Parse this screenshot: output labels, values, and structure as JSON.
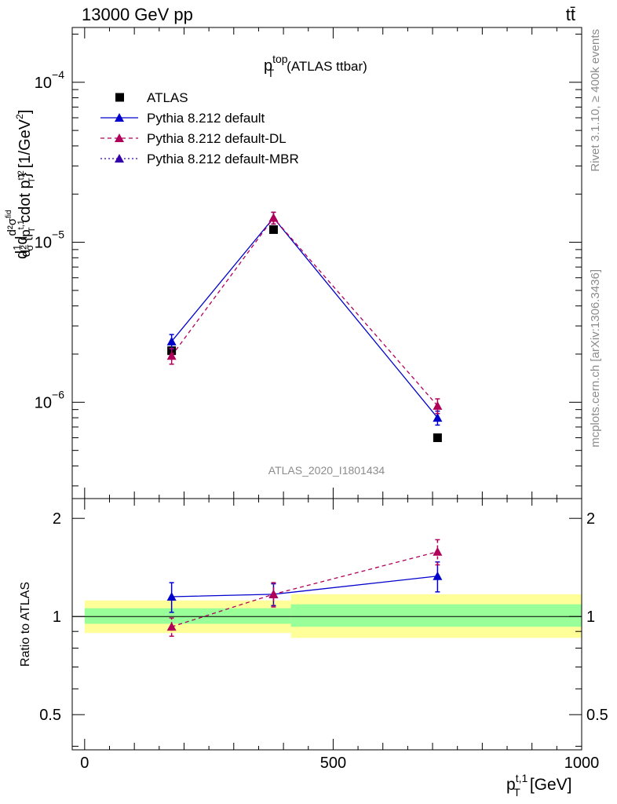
{
  "header": {
    "left": "13000 GeV pp",
    "right": "tt̄"
  },
  "side_labels": {
    "rivet": "Rivet 3.1.10, ≥ 400k events",
    "mcplots": "mcplots.cern.ch [arXiv:1306.3436]"
  },
  "watermark": "ATLAS_2020_I1801434",
  "chart_data": [
    {
      "type": "line",
      "panel": "main",
      "title_main": "p",
      "title_sup": "top",
      "title_sub": "T",
      "title_suffix": "(ATLAS ttbar)",
      "ylabel": "d²σ/d²{p_T^{t,1} cdot p_T^{t,2}} (1/σ) [1/GeV²]",
      "ylabel_parts": [
        "d",
        "1",
        "σ",
        "d",
        "d²σ",
        "fid",
        "d² {p",
        "t,1",
        "T",
        " cdot p",
        "t,2",
        "T",
        "} [1/GeV",
        "2",
        "]"
      ],
      "yscale": "log",
      "ylim": [
        2.5e-07,
        0.00022
      ],
      "xlim": [
        -25,
        1000
      ],
      "ytick_labels": [
        {
          "base": "10",
          "exp": "−6",
          "value": 1e-06
        },
        {
          "base": "10",
          "exp": "−5",
          "value": 1e-05
        },
        {
          "base": "10",
          "exp": "−4",
          "value": 0.0001
        }
      ],
      "legend_position": "top-left",
      "series": [
        {
          "name": "ATLAS",
          "x": [
            175,
            380,
            710
          ],
          "y": [
            2.1e-06,
            1.2e-05,
            6e-07
          ],
          "yerr": [
            0,
            0,
            0
          ],
          "color": "#000000",
          "marker": "square",
          "line": "none"
        },
        {
          "name": "Pythia 8.212 default",
          "x": [
            175,
            380,
            710
          ],
          "y": [
            2.4e-06,
            1.42e-05,
            8e-07
          ],
          "yerr": [
            2.5e-07,
            1.2e-06,
            8e-08
          ],
          "color": "#0000cc",
          "marker": "triangle",
          "line": "solid"
        },
        {
          "name": "Pythia 8.212 default-DL",
          "x": [
            175,
            380,
            710
          ],
          "y": [
            1.95e-06,
            1.42e-05,
            9.5e-07
          ],
          "yerr": [
            2.2e-07,
            1.2e-06,
            1e-07
          ],
          "color": "#b0005a",
          "marker": "triangle",
          "line": "dashed"
        },
        {
          "name": "Pythia 8.212 default-MBR",
          "x": [],
          "y": [],
          "yerr": [],
          "color": "#3300aa",
          "marker": "triangle",
          "line": "dotted"
        }
      ]
    },
    {
      "type": "line",
      "panel": "ratio",
      "ylabel": "Ratio to ATLAS",
      "xlabel_main": "p",
      "xlabel_sup": "t,1",
      "xlabel_sub": "T",
      "xlabel_suffix": "[GeV]",
      "yscale": "log",
      "ylim": [
        0.39,
        2.3
      ],
      "xlim": [
        -25,
        1000
      ],
      "ytick_labels": [
        {
          "label": "0.5",
          "value": 0.5
        },
        {
          "label": "1",
          "value": 1
        },
        {
          "label": "2",
          "value": 2
        }
      ],
      "xtick_labels": [
        {
          "label": "0",
          "value": 0
        },
        {
          "label": "500",
          "value": 500
        },
        {
          "label": "1000",
          "value": 1000
        }
      ],
      "bands": [
        {
          "x0": 0,
          "x1": 415,
          "yellow": [
            0.89,
            1.12
          ],
          "green": [
            0.95,
            1.06
          ]
        },
        {
          "x0": 415,
          "x1": 1000,
          "yellow": [
            0.86,
            1.17
          ],
          "green": [
            0.93,
            1.09
          ]
        }
      ],
      "series": [
        {
          "name": "Pythia 8.212 default",
          "x": [
            175,
            380,
            710
          ],
          "y": [
            1.15,
            1.17,
            1.33
          ],
          "yerr": [
            0.12,
            0.09,
            0.14
          ],
          "color": "#0000cc",
          "line": "solid"
        },
        {
          "name": "Pythia 8.212 default-DL",
          "x": [
            175,
            380,
            710
          ],
          "y": [
            0.93,
            1.17,
            1.58
          ],
          "yerr": [
            0.06,
            0.1,
            0.14
          ],
          "color": "#b0005a",
          "line": "dashed"
        }
      ]
    }
  ]
}
